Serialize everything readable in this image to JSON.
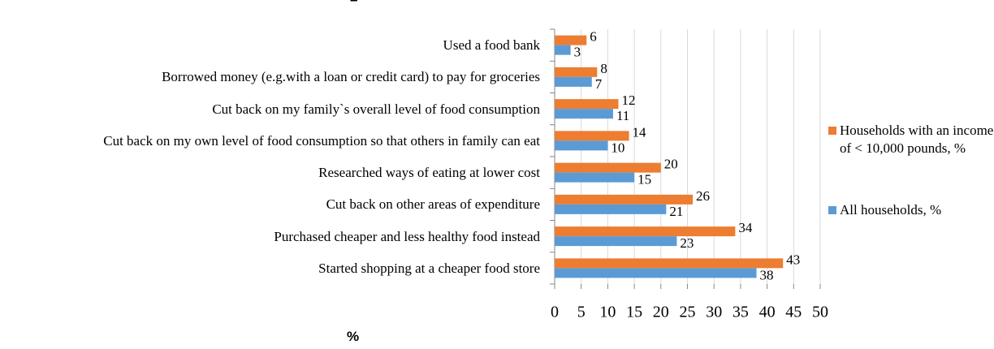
{
  "chart_data": {
    "type": "bar",
    "orientation": "horizontal",
    "title": "–",
    "x_label": "%",
    "categories": [
      "Used a food bank",
      "Borrowed money (e.g.with a loan or credit card) to pay for groceries",
      "Cut back on my family`s overall level of food consumption",
      "Cut back on my own level of food consumption so that others in family can eat",
      "Researched ways of eating at lower cost",
      "Cut back on other areas of expenditure",
      "Purchased cheaper and less healthy food instead",
      "Started shopping at a cheaper food store"
    ],
    "series": [
      {
        "name": "Households with an income of < 10,000 pounds, %",
        "color": "#ed7d31",
        "values": [
          6,
          8,
          12,
          14,
          20,
          26,
          34,
          43
        ]
      },
      {
        "name": "All households, %",
        "color": "#5b9bd5",
        "values": [
          3,
          7,
          11,
          10,
          15,
          21,
          23,
          38
        ]
      }
    ],
    "xlim": [
      0,
      50
    ],
    "xticks": [
      0,
      5,
      10,
      15,
      20,
      25,
      30,
      35,
      40,
      45,
      50
    ],
    "grid": true,
    "legend": "right"
  }
}
